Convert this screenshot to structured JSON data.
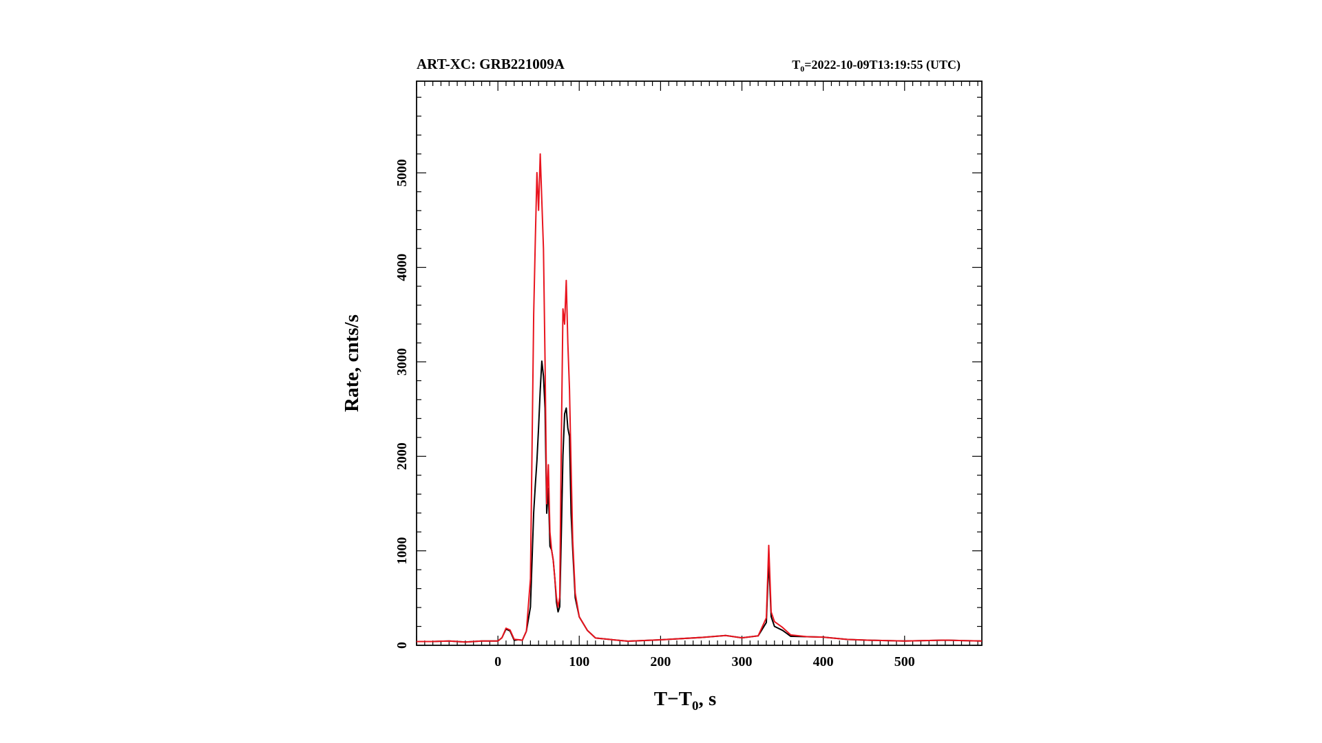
{
  "chart_data": {
    "type": "line",
    "title": "ART-XC: GRB221009A",
    "t0_label": "T",
    "t0_sub": "0",
    "t0_value": "=2022-10-09T13:19:55 (UTC)",
    "xlabel_main": "T−T",
    "xlabel_sub": "0",
    "xlabel_end": ", s",
    "ylabel": "Rate, cnts/s",
    "xlim": [
      -100,
      595
    ],
    "ylim": [
      0,
      5970
    ],
    "x_ticks": [
      0,
      100,
      200,
      300,
      400,
      500
    ],
    "y_ticks": [
      0,
      1000,
      2000,
      3000,
      4000,
      5000
    ],
    "grid": false,
    "colors": {
      "series_black": "#000000",
      "series_red": "#e8141e"
    },
    "series": [
      {
        "color": "black",
        "x": [
          -100,
          -80,
          -60,
          -40,
          -20,
          0,
          5,
          10,
          15,
          20,
          25,
          30,
          35,
          40,
          44,
          46,
          48,
          50,
          52,
          54,
          56,
          58,
          60,
          62,
          64,
          66,
          68,
          70,
          72,
          74,
          76,
          78,
          80,
          82,
          84,
          86,
          88,
          90,
          92,
          95,
          100,
          110,
          120,
          140,
          160,
          200,
          250,
          280,
          300,
          320,
          330,
          333,
          336,
          340,
          350,
          360,
          380,
          400,
          430,
          460,
          500,
          550,
          595
        ],
        "y": [
          35,
          40,
          35,
          40,
          45,
          50,
          80,
          170,
          150,
          60,
          50,
          60,
          150,
          400,
          1400,
          1700,
          1950,
          2300,
          2700,
          3000,
          2850,
          2500,
          1400,
          1650,
          1050,
          1000,
          900,
          700,
          450,
          350,
          400,
          1200,
          2000,
          2450,
          2500,
          2300,
          2200,
          1400,
          1000,
          500,
          300,
          150,
          80,
          60,
          55,
          60,
          75,
          100,
          90,
          100,
          250,
          900,
          300,
          200,
          150,
          95,
          80,
          90,
          70,
          60,
          50,
          45,
          40
        ]
      },
      {
        "color": "red",
        "x": [
          -100,
          -80,
          -60,
          -40,
          -20,
          0,
          5,
          10,
          15,
          20,
          25,
          30,
          35,
          40,
          44,
          46,
          48,
          50,
          52,
          54,
          56,
          58,
          60,
          62,
          64,
          66,
          68,
          70,
          72,
          74,
          76,
          78,
          80,
          82,
          84,
          86,
          88,
          90,
          92,
          95,
          100,
          110,
          120,
          140,
          160,
          200,
          250,
          280,
          300,
          320,
          330,
          333,
          336,
          340,
          350,
          360,
          380,
          400,
          430,
          460,
          500,
          550,
          595
        ],
        "y": [
          35,
          40,
          35,
          40,
          45,
          50,
          80,
          180,
          160,
          70,
          50,
          60,
          150,
          700,
          3500,
          4300,
          5000,
          4600,
          5200,
          4700,
          4200,
          3000,
          1500,
          1900,
          1200,
          1000,
          900,
          700,
          500,
          400,
          500,
          2200,
          3550,
          3400,
          3850,
          3200,
          2700,
          1900,
          1100,
          550,
          300,
          150,
          80,
          60,
          55,
          60,
          75,
          100,
          90,
          100,
          300,
          1060,
          350,
          250,
          180,
          110,
          80,
          90,
          70,
          60,
          50,
          45,
          40
        ]
      }
    ]
  }
}
